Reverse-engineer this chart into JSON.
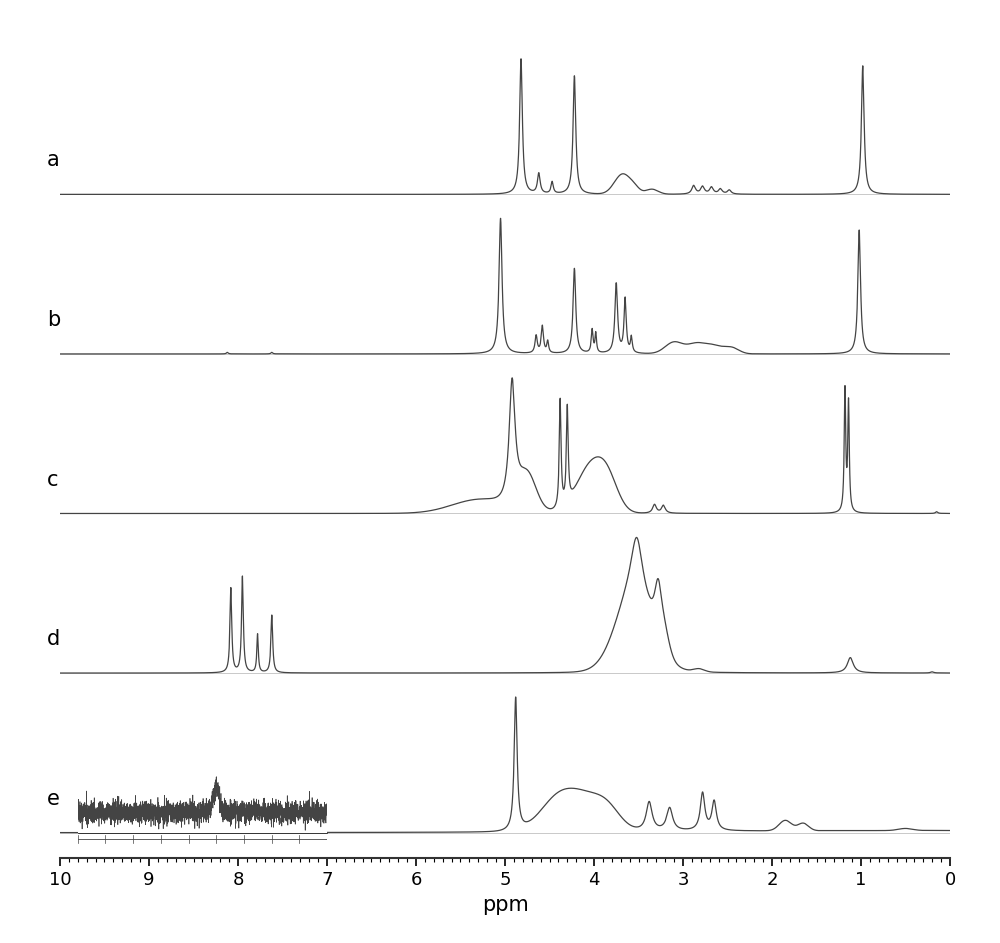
{
  "spectra_labels": [
    "a",
    "b",
    "c",
    "d",
    "e"
  ],
  "x_min": 0,
  "x_max": 10,
  "xlabel": "ppm",
  "background_color": "#ffffff",
  "line_color": "#444444",
  "line_width": 0.9,
  "label_fontsize": 15,
  "xlabel_fontsize": 15,
  "tick_fontsize": 13,
  "fig_width": 10.0,
  "fig_height": 9.43
}
